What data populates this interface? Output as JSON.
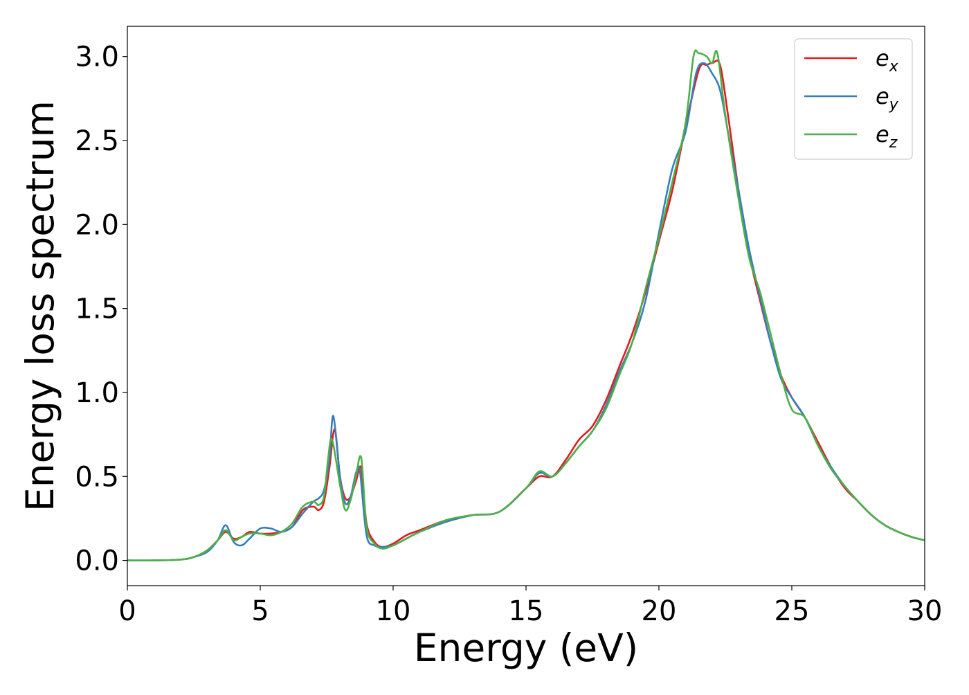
{
  "chart_data": {
    "type": "line",
    "xlabel": "Energy (eV)",
    "ylabel": "Energy loss spectrum",
    "xlim": [
      0,
      30
    ],
    "ylim": [
      -0.15,
      3.18
    ],
    "xticks": [
      0,
      5,
      10,
      15,
      20,
      25,
      30
    ],
    "xtick_labels": [
      "0",
      "5",
      "10",
      "15",
      "20",
      "25",
      "30"
    ],
    "yticks": [
      0.0,
      0.5,
      1.0,
      1.5,
      2.0,
      2.5,
      3.0
    ],
    "ytick_labels": [
      "0.0",
      "0.5",
      "1.0",
      "1.5",
      "2.0",
      "2.5",
      "3.0"
    ],
    "grid": false,
    "legend_position": "top-right",
    "series": [
      {
        "name": "e_x",
        "label_main": "e",
        "label_sub": "x",
        "color": "#e41a1c",
        "points": [
          [
            0,
            0
          ],
          [
            1,
            0
          ],
          [
            2,
            0.005
          ],
          [
            2.5,
            0.02
          ],
          [
            3,
            0.06
          ],
          [
            3.4,
            0.12
          ],
          [
            3.7,
            0.17
          ],
          [
            4,
            0.13
          ],
          [
            4.3,
            0.14
          ],
          [
            4.6,
            0.17
          ],
          [
            5,
            0.16
          ],
          [
            5.4,
            0.16
          ],
          [
            5.8,
            0.17
          ],
          [
            6.2,
            0.2
          ],
          [
            6.6,
            0.3
          ],
          [
            7,
            0.32
          ],
          [
            7.2,
            0.3
          ],
          [
            7.4,
            0.35
          ],
          [
            7.6,
            0.55
          ],
          [
            7.8,
            0.78
          ],
          [
            8,
            0.5
          ],
          [
            8.2,
            0.37
          ],
          [
            8.4,
            0.38
          ],
          [
            8.6,
            0.47
          ],
          [
            8.8,
            0.55
          ],
          [
            9,
            0.22
          ],
          [
            9.3,
            0.11
          ],
          [
            9.6,
            0.08
          ],
          [
            10,
            0.1
          ],
          [
            10.5,
            0.15
          ],
          [
            11,
            0.18
          ],
          [
            12,
            0.24
          ],
          [
            13,
            0.27
          ],
          [
            14,
            0.29
          ],
          [
            15,
            0.43
          ],
          [
            15.5,
            0.5
          ],
          [
            16,
            0.5
          ],
          [
            16.5,
            0.6
          ],
          [
            17,
            0.72
          ],
          [
            17.5,
            0.8
          ],
          [
            18,
            0.95
          ],
          [
            18.5,
            1.15
          ],
          [
            19,
            1.35
          ],
          [
            19.5,
            1.6
          ],
          [
            20,
            1.9
          ],
          [
            20.5,
            2.2
          ],
          [
            21,
            2.58
          ],
          [
            21.5,
            2.92
          ],
          [
            21.8,
            2.95
          ],
          [
            22,
            2.96
          ],
          [
            22.3,
            2.95
          ],
          [
            22.6,
            2.65
          ],
          [
            23,
            2.2
          ],
          [
            23.4,
            1.82
          ],
          [
            23.8,
            1.55
          ],
          [
            24.2,
            1.3
          ],
          [
            24.6,
            1.1
          ],
          [
            25,
            0.97
          ],
          [
            25.5,
            0.85
          ],
          [
            26,
            0.7
          ],
          [
            26.5,
            0.55
          ],
          [
            27,
            0.43
          ],
          [
            27.5,
            0.35
          ],
          [
            28,
            0.27
          ],
          [
            28.5,
            0.21
          ],
          [
            29,
            0.17
          ],
          [
            29.5,
            0.14
          ],
          [
            30,
            0.12
          ]
        ]
      },
      {
        "name": "e_y",
        "label_main": "e",
        "label_sub": "y",
        "color": "#377eb8",
        "points": [
          [
            0,
            0
          ],
          [
            1,
            0
          ],
          [
            2,
            0.005
          ],
          [
            2.5,
            0.02
          ],
          [
            3,
            0.05
          ],
          [
            3.4,
            0.12
          ],
          [
            3.7,
            0.21
          ],
          [
            4,
            0.11
          ],
          [
            4.3,
            0.09
          ],
          [
            4.6,
            0.13
          ],
          [
            5,
            0.19
          ],
          [
            5.4,
            0.19
          ],
          [
            5.8,
            0.17
          ],
          [
            6.2,
            0.2
          ],
          [
            6.6,
            0.28
          ],
          [
            7,
            0.35
          ],
          [
            7.2,
            0.37
          ],
          [
            7.4,
            0.42
          ],
          [
            7.6,
            0.6
          ],
          [
            7.75,
            0.86
          ],
          [
            8,
            0.5
          ],
          [
            8.2,
            0.34
          ],
          [
            8.4,
            0.38
          ],
          [
            8.6,
            0.52
          ],
          [
            8.75,
            0.53
          ],
          [
            9,
            0.15
          ],
          [
            9.3,
            0.09
          ],
          [
            9.6,
            0.08
          ],
          [
            10,
            0.09
          ],
          [
            10.5,
            0.13
          ],
          [
            11,
            0.17
          ],
          [
            12,
            0.23
          ],
          [
            13,
            0.27
          ],
          [
            14,
            0.29
          ],
          [
            15,
            0.43
          ],
          [
            15.5,
            0.52
          ],
          [
            16,
            0.5
          ],
          [
            16.5,
            0.58
          ],
          [
            17,
            0.68
          ],
          [
            17.5,
            0.77
          ],
          [
            18,
            0.92
          ],
          [
            18.5,
            1.12
          ],
          [
            19,
            1.3
          ],
          [
            19.5,
            1.55
          ],
          [
            20,
            1.95
          ],
          [
            20.5,
            2.33
          ],
          [
            21,
            2.55
          ],
          [
            21.4,
            2.9
          ],
          [
            21.7,
            2.96
          ],
          [
            22,
            2.9
          ],
          [
            22.3,
            2.8
          ],
          [
            22.6,
            2.55
          ],
          [
            23,
            2.2
          ],
          [
            23.4,
            1.85
          ],
          [
            23.8,
            1.57
          ],
          [
            24.2,
            1.3
          ],
          [
            24.6,
            1.08
          ],
          [
            25,
            0.97
          ],
          [
            25.5,
            0.85
          ],
          [
            26,
            0.68
          ],
          [
            26.5,
            0.55
          ],
          [
            27,
            0.44
          ],
          [
            27.5,
            0.35
          ],
          [
            28,
            0.27
          ],
          [
            28.5,
            0.21
          ],
          [
            29,
            0.17
          ],
          [
            29.5,
            0.14
          ],
          [
            30,
            0.12
          ]
        ]
      },
      {
        "name": "e_z",
        "label_main": "e",
        "label_sub": "z",
        "color": "#4daf4a",
        "points": [
          [
            0,
            0
          ],
          [
            1,
            0
          ],
          [
            2,
            0.005
          ],
          [
            2.5,
            0.02
          ],
          [
            3,
            0.06
          ],
          [
            3.4,
            0.12
          ],
          [
            3.7,
            0.18
          ],
          [
            4,
            0.12
          ],
          [
            4.3,
            0.14
          ],
          [
            4.6,
            0.16
          ],
          [
            5,
            0.16
          ],
          [
            5.4,
            0.15
          ],
          [
            5.8,
            0.17
          ],
          [
            6.2,
            0.22
          ],
          [
            6.6,
            0.32
          ],
          [
            7,
            0.35
          ],
          [
            7.2,
            0.33
          ],
          [
            7.4,
            0.38
          ],
          [
            7.55,
            0.6
          ],
          [
            7.7,
            0.72
          ],
          [
            8,
            0.45
          ],
          [
            8.2,
            0.3
          ],
          [
            8.4,
            0.36
          ],
          [
            8.6,
            0.5
          ],
          [
            8.8,
            0.61
          ],
          [
            9,
            0.2
          ],
          [
            9.3,
            0.1
          ],
          [
            9.6,
            0.07
          ],
          [
            10,
            0.09
          ],
          [
            10.5,
            0.13
          ],
          [
            11,
            0.17
          ],
          [
            12,
            0.24
          ],
          [
            13,
            0.27
          ],
          [
            14,
            0.29
          ],
          [
            15,
            0.43
          ],
          [
            15.5,
            0.53
          ],
          [
            16,
            0.5
          ],
          [
            16.5,
            0.58
          ],
          [
            17,
            0.68
          ],
          [
            17.5,
            0.77
          ],
          [
            18,
            0.9
          ],
          [
            18.5,
            1.1
          ],
          [
            19,
            1.3
          ],
          [
            19.5,
            1.62
          ],
          [
            20,
            1.92
          ],
          [
            20.5,
            2.25
          ],
          [
            21,
            2.6
          ],
          [
            21.3,
            3.0
          ],
          [
            21.5,
            3.02
          ],
          [
            21.8,
            3.0
          ],
          [
            22,
            2.96
          ],
          [
            22.2,
            3.02
          ],
          [
            22.5,
            2.65
          ],
          [
            23,
            2.15
          ],
          [
            23.4,
            1.8
          ],
          [
            23.8,
            1.6
          ],
          [
            24.2,
            1.35
          ],
          [
            24.6,
            1.1
          ],
          [
            25,
            0.9
          ],
          [
            25.5,
            0.85
          ],
          [
            26,
            0.68
          ],
          [
            26.5,
            0.54
          ],
          [
            27,
            0.44
          ],
          [
            27.5,
            0.35
          ],
          [
            28,
            0.27
          ],
          [
            28.5,
            0.21
          ],
          [
            29,
            0.17
          ],
          [
            29.5,
            0.14
          ],
          [
            30,
            0.12
          ]
        ]
      }
    ]
  }
}
